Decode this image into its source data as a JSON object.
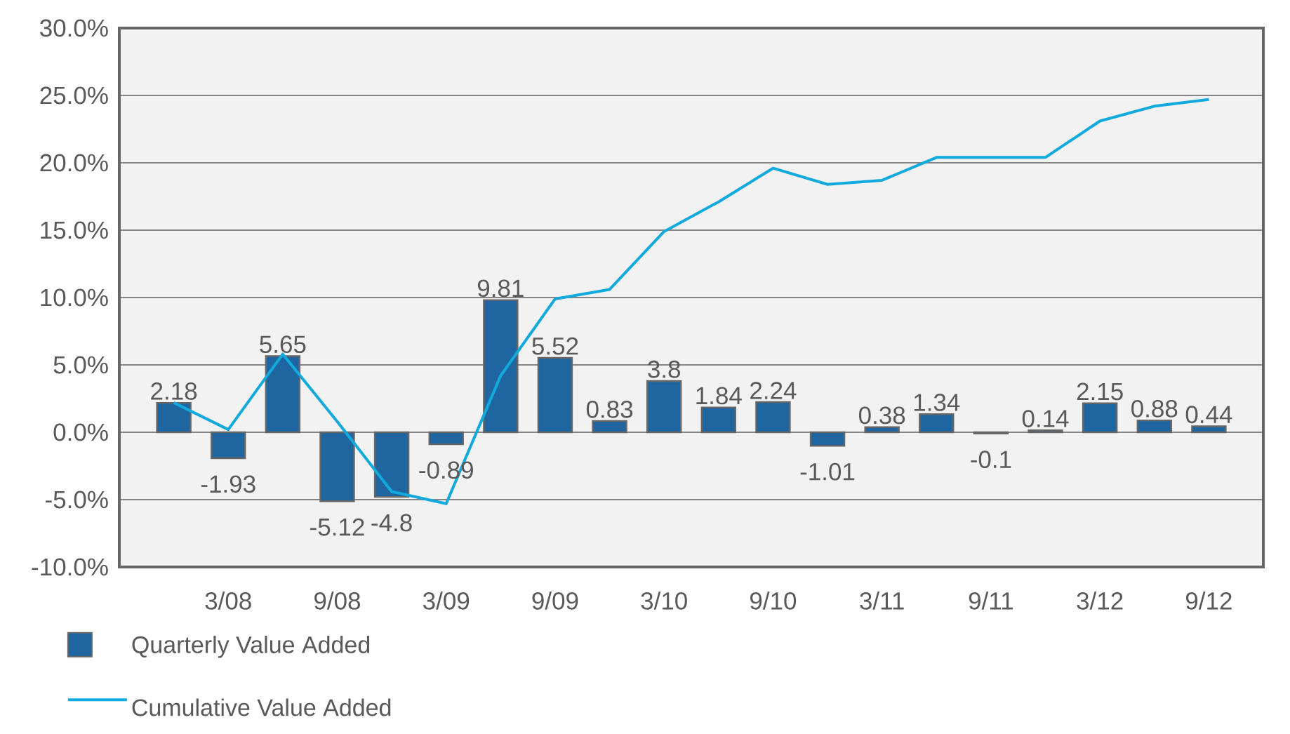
{
  "chart_data": {
    "type": "bar",
    "categories": [
      null,
      "3/08",
      null,
      "9/08",
      null,
      "3/09",
      null,
      "9/09",
      null,
      "3/10",
      null,
      "9/10",
      null,
      "3/11",
      null,
      "9/11",
      null,
      "3/12",
      null,
      "9/12"
    ],
    "series": [
      {
        "name": "Quarterly Value Added",
        "color": "#1f66a1",
        "values": [
          2.18,
          -1.93,
          5.65,
          -5.12,
          -4.8,
          -0.89,
          9.81,
          5.52,
          0.83,
          3.8,
          1.84,
          2.24,
          -1.01,
          0.38,
          1.34,
          -0.1,
          0.14,
          2.15,
          0.88,
          0.44
        ],
        "value_labels": [
          "2.18",
          "-1.93",
          "5.65",
          "-5.12",
          "-4.8",
          "-0.89",
          "9.81",
          "5.52",
          "0.83",
          "3.8",
          "1.84",
          "2.24",
          "-1.01",
          "0.38",
          "1.34",
          "-0.1",
          "0.14",
          "2.15",
          "0.88",
          "0.44"
        ]
      },
      {
        "name": "Cumulative Value Added",
        "type": "line",
        "color": "#12a9dd",
        "values": [
          2.2,
          0.2,
          5.8,
          0.8,
          -4.4,
          -5.3,
          4.2,
          9.9,
          10.6,
          14.9,
          17.1,
          19.6,
          18.4,
          18.7,
          20.4,
          20.4,
          20.4,
          23.1,
          24.2,
          24.7
        ]
      }
    ],
    "ylim": [
      -10,
      30
    ],
    "yticks": [
      {
        "value": -10,
        "label": "-10.0%"
      },
      {
        "value": -5,
        "label": "-5.0%"
      },
      {
        "value": 0,
        "label": "0.0%"
      },
      {
        "value": 5,
        "label": "5.0%"
      },
      {
        "value": 10,
        "label": "10.0%"
      },
      {
        "value": 15,
        "label": "15.0%"
      },
      {
        "value": 20,
        "label": "20.0%"
      },
      {
        "value": 25,
        "label": "25.0%"
      },
      {
        "value": 30,
        "label": "30.0%"
      }
    ],
    "grid": "y",
    "legend": "bottom left",
    "marker": "none"
  }
}
